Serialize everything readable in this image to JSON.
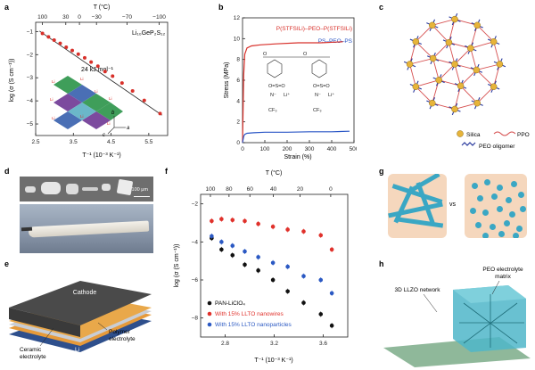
{
  "panels": {
    "a": {
      "label": "a"
    },
    "b": {
      "label": "b"
    },
    "c": {
      "label": "c"
    },
    "d": {
      "label": "d"
    },
    "e": {
      "label": "e"
    },
    "f": {
      "label": "f"
    },
    "g": {
      "label": "g"
    },
    "h": {
      "label": "h"
    }
  },
  "panel_a": {
    "top_axis_label": "T (°C)",
    "top_ticks": [
      "100",
      "30",
      "0",
      "−30",
      "−70",
      "−100"
    ],
    "x_ticks": [
      "2.5",
      "3.5",
      "4.5",
      "5.5"
    ],
    "y_ticks": [
      "−1",
      "−2",
      "−3",
      "−4",
      "−5"
    ],
    "xlabel": "T⁻¹ (10⁻³ K⁻¹)",
    "ylabel": "log (σ (S cm⁻¹))",
    "compound": "Li₁₀GeP₂S₁₂",
    "activation": "24 kJ mol⁻¹",
    "axis_b": "b",
    "axis_a": "a",
    "axis_c": "c",
    "crystal_labels": [
      "Li",
      "Li",
      "Li",
      "Li",
      "Li",
      "Li",
      "Li",
      "Li"
    ],
    "colors": {
      "data": "#d8302a",
      "fit": "#222222"
    }
  },
  "panel_b": {
    "x_ticks": [
      "0",
      "100",
      "200",
      "300",
      "400",
      "500"
    ],
    "y_ticks": [
      "0",
      "2",
      "4",
      "6",
      "8",
      "10",
      "12"
    ],
    "xlabel": "Strain (%)",
    "ylabel": "Stress (MPa)",
    "series_red": "P(STFSILi)–PEO–P(STFSILi)",
    "series_blue": "PS–PEO–PS",
    "chem": [
      "O",
      "O",
      "Li⁺",
      "Li⁺",
      "N⁻",
      "N⁻",
      "CF₃",
      "CF₃",
      "O=S=O",
      "O=S=O"
    ],
    "colors": {
      "red": "#d8302a",
      "blue": "#2a56c6"
    }
  },
  "panel_c": {
    "legend_silica": "Silica",
    "legend_ppo": "PPO",
    "legend_peo": "PEO oligomer"
  },
  "panel_d": {
    "scale_bar": "100 μm"
  },
  "panel_e": {
    "cathode": "Cathode",
    "ceramic": "Ceramic\nelectrolyte",
    "polymer": "Polymer\nelectrolyte",
    "li": "Li"
  },
  "panel_f": {
    "top_axis_label": "T (°C)",
    "top_ticks": [
      "100",
      "80",
      "60",
      "40",
      "20",
      "0"
    ],
    "x_ticks": [
      "2.8",
      "3.2",
      "3.6"
    ],
    "y_ticks": [
      "−2",
      "−4",
      "−6",
      "−8"
    ],
    "xlabel": "T⁻¹ (10⁻³ K⁻¹)",
    "ylabel": "log (σ (S cm⁻¹))",
    "legend": [
      "PAN-LiClO₄",
      "With 15% LLTO nanowires",
      "With 15% LLTO nanoparticles"
    ],
    "colors": {
      "black": "#111111",
      "red": "#e0312b",
      "blue": "#2b59c3"
    }
  },
  "panel_g": {
    "vs": "vs"
  },
  "panel_h": {
    "peo_label": "PEO electrolyte\nmatrix",
    "llzo_label": "3D LLZO network"
  },
  "chart_data": [
    {
      "type": "scatter",
      "panel": "a",
      "xlabel": "T⁻¹ (10⁻³ K⁻¹)",
      "ylabel": "log (σ (S cm⁻¹))",
      "xlim": [
        2.5,
        6.0
      ],
      "ylim": [
        -5.5,
        -0.6
      ],
      "series": [
        {
          "x": [
            2.68,
            2.84,
            2.99,
            3.15,
            3.31,
            3.47,
            3.63,
            3.8,
            3.97,
            4.15,
            4.34,
            4.54,
            4.79,
            5.07,
            5.38,
            5.8
          ],
          "values": [
            -1.08,
            -1.23,
            -1.37,
            -1.51,
            -1.68,
            -1.82,
            -1.98,
            -2.14,
            -2.32,
            -2.5,
            -2.73,
            -2.93,
            -3.23,
            -3.57,
            -3.98,
            -4.55
          ]
        }
      ]
    },
    {
      "type": "line",
      "panel": "b",
      "xlabel": "Strain (%)",
      "ylabel": "Stress (MPa)",
      "xlim": [
        0,
        500
      ],
      "ylim": [
        0,
        12
      ],
      "series": [
        {
          "name": "P(STFSILi)–PEO–P(STFSILi)",
          "x": [
            0,
            5,
            10,
            20,
            40,
            80,
            150,
            250,
            350,
            450
          ],
          "values": [
            0,
            6.5,
            8.5,
            9.1,
            9.3,
            9.4,
            9.5,
            9.6,
            9.6,
            9.7
          ]
        },
        {
          "name": "PS–PEO–PS",
          "x": [
            0,
            5,
            10,
            20,
            50,
            100,
            200,
            300,
            400,
            480
          ],
          "values": [
            0,
            0.6,
            0.8,
            0.9,
            0.95,
            1.0,
            1.0,
            1.05,
            1.05,
            1.1
          ]
        }
      ]
    },
    {
      "type": "scatter",
      "panel": "f",
      "xlabel": "T⁻¹ (10⁻³ K⁻¹)",
      "ylabel": "log (σ (S cm⁻¹))",
      "xlim": [
        2.6,
        3.8
      ],
      "ylim": [
        -9,
        -1.5
      ],
      "series": [
        {
          "name": "PAN-LiClO₄",
          "x": [
            2.69,
            2.77,
            2.86,
            2.96,
            3.07,
            3.19,
            3.31,
            3.44,
            3.58,
            3.67
          ],
          "values": [
            -3.8,
            -4.4,
            -4.7,
            -5.2,
            -5.5,
            -6.0,
            -6.6,
            -7.2,
            -7.8,
            -8.4
          ]
        },
        {
          "name": "With 15% LLTO nanowires",
          "x": [
            2.69,
            2.77,
            2.86,
            2.96,
            3.07,
            3.19,
            3.31,
            3.44,
            3.58,
            3.67
          ],
          "values": [
            -2.9,
            -2.8,
            -2.85,
            -2.9,
            -3.05,
            -3.2,
            -3.35,
            -3.45,
            -3.65,
            -4.4
          ]
        },
        {
          "name": "With 15% LLTO nanoparticles",
          "x": [
            2.69,
            2.77,
            2.86,
            2.96,
            3.07,
            3.19,
            3.31,
            3.44,
            3.58,
            3.67
          ],
          "values": [
            -3.7,
            -4.0,
            -4.2,
            -4.5,
            -4.8,
            -5.1,
            -5.3,
            -5.8,
            -6.0,
            -6.7
          ]
        }
      ]
    }
  ]
}
